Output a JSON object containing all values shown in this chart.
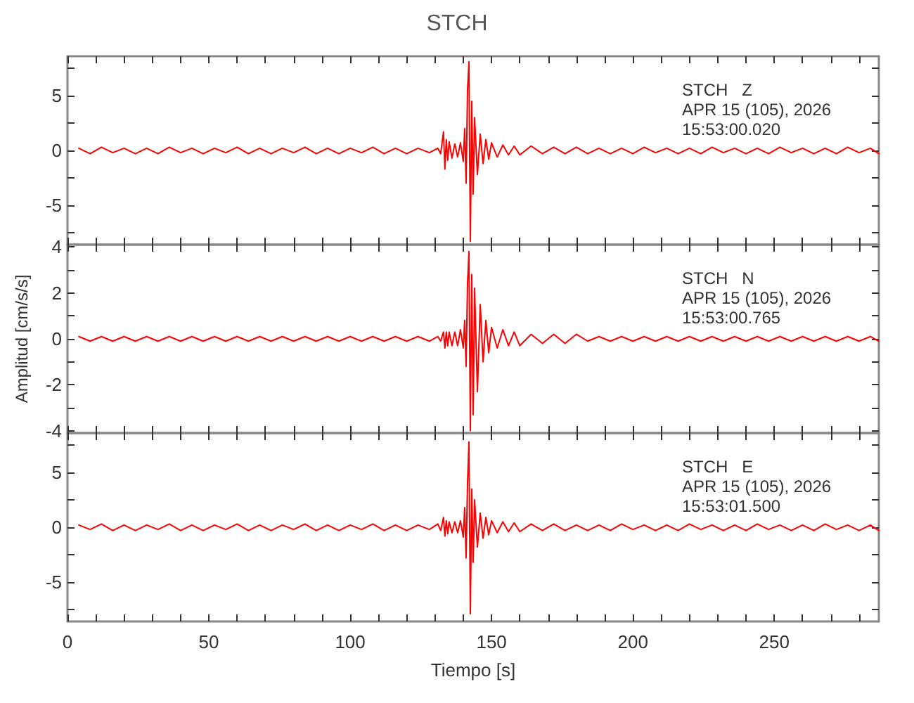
{
  "chart_data": [
    {
      "type": "line",
      "title": "STCH",
      "annotations": [
        "STCH   Z",
        "APR 15 (105), 2026",
        "15:53:00.020"
      ],
      "x": [
        4,
        8,
        12,
        16,
        20,
        24,
        28,
        32,
        36,
        40,
        44,
        48,
        52,
        56,
        60,
        64,
        68,
        72,
        76,
        80,
        84,
        88,
        92,
        96,
        100,
        104,
        108,
        112,
        116,
        120,
        124,
        128,
        131,
        132,
        133,
        133.5,
        134,
        134.5,
        135,
        136,
        137,
        138,
        139,
        140,
        140.5,
        141,
        141.5,
        142,
        142.5,
        143,
        143.5,
        144,
        145,
        146,
        147,
        148,
        149,
        150,
        152,
        154,
        156,
        158,
        160,
        164,
        168,
        172,
        176,
        180,
        184,
        188,
        192,
        196,
        200,
        204,
        208,
        212,
        216,
        220,
        224,
        228,
        232,
        236,
        240,
        244,
        248,
        252,
        256,
        260,
        264,
        268,
        272,
        276,
        280,
        284,
        287
      ],
      "series": [
        {
          "color": "#ff0000",
          "values": [
            0.2,
            -0.3,
            0.3,
            -0.2,
            0.2,
            -0.3,
            0.2,
            -0.3,
            0.3,
            -0.2,
            0.2,
            -0.3,
            0.2,
            -0.2,
            0.3,
            -0.3,
            0.2,
            -0.3,
            0.2,
            -0.2,
            0.3,
            -0.3,
            0.2,
            -0.3,
            0.2,
            -0.2,
            0.3,
            -0.3,
            0.2,
            -0.3,
            0.2,
            -0.2,
            0.2,
            -0.3,
            1.7,
            -1.7,
            1.0,
            -0.9,
            0.8,
            -0.7,
            0.6,
            -0.6,
            0.7,
            -1.0,
            2.0,
            -3.0,
            5.5,
            8.1,
            -8.3,
            4.5,
            -4.0,
            3.0,
            -2.2,
            1.5,
            -1.2,
            1.0,
            -0.8,
            0.7,
            -0.6,
            0.5,
            -0.4,
            0.4,
            -0.4,
            0.4,
            -0.3,
            0.3,
            -0.3,
            0.3,
            -0.3,
            0.2,
            -0.3,
            0.2,
            -0.3,
            0.3,
            -0.2,
            0.2,
            -0.3,
            0.2,
            -0.3,
            0.3,
            -0.2,
            0.2,
            -0.3,
            0.2,
            -0.3,
            0.3,
            -0.2,
            0.2,
            -0.3,
            0.2,
            -0.3,
            0.3,
            -0.2,
            0.2,
            -0.3
          ]
        }
      ],
      "xlim": [
        0,
        287
      ],
      "xticks": [
        0,
        {
          "value": 10,
          "label": null
        },
        {
          "value": 20,
          "label": null
        },
        {
          "value": 30,
          "label": null
        },
        {
          "value": 40,
          "label": null
        },
        50,
        {
          "value": 60,
          "label": null
        },
        {
          "value": 70,
          "label": null
        },
        {
          "value": 80,
          "label": null
        },
        {
          "value": 90,
          "label": null
        },
        100,
        {
          "value": 110,
          "label": null
        },
        {
          "value": 120,
          "label": null
        },
        {
          "value": 130,
          "label": null
        },
        {
          "value": 140,
          "label": null
        },
        150,
        {
          "value": 160,
          "label": null
        },
        {
          "value": 170,
          "label": null
        },
        {
          "value": 180,
          "label": null
        },
        {
          "value": 190,
          "label": null
        },
        200,
        {
          "value": 210,
          "label": null
        },
        {
          "value": 220,
          "label": null
        },
        {
          "value": 230,
          "label": null
        },
        {
          "value": 240,
          "label": null
        },
        250,
        {
          "value": 260,
          "label": null
        },
        {
          "value": 270,
          "label": null
        },
        {
          "value": 280,
          "label": null
        }
      ],
      "ylim": [
        -8.6,
        8.6
      ],
      "yticks": [
        {
          "value": -7.5,
          "label": null
        },
        -5,
        {
          "value": -2.5,
          "label": null
        },
        0,
        {
          "value": 2.5,
          "label": null
        },
        5,
        {
          "value": 7.5,
          "label": null
        }
      ],
      "tick_labels": "y",
      "grid": false,
      "marker": "none",
      "line_style": "solid"
    },
    {
      "type": "line",
      "ylabel": "Amplitud [cm/s/s]",
      "annotations": [
        "STCH   N",
        "APR 15 (105), 2026",
        "15:53:00.765"
      ],
      "x": [
        4,
        8,
        12,
        16,
        20,
        24,
        28,
        32,
        36,
        40,
        44,
        48,
        52,
        56,
        60,
        64,
        68,
        72,
        76,
        80,
        84,
        88,
        92,
        96,
        100,
        104,
        108,
        112,
        116,
        120,
        124,
        128,
        131,
        132,
        133,
        133.5,
        134,
        134.5,
        135,
        136,
        137,
        138,
        139,
        140,
        140.5,
        141,
        141.5,
        142,
        142.5,
        143,
        143.5,
        144,
        145,
        146,
        147,
        148,
        149,
        150,
        152,
        154,
        156,
        158,
        160,
        164,
        168,
        172,
        176,
        180,
        184,
        188,
        192,
        196,
        200,
        204,
        208,
        212,
        216,
        220,
        224,
        228,
        232,
        236,
        240,
        244,
        248,
        252,
        256,
        260,
        264,
        268,
        272,
        276,
        280,
        284,
        287
      ],
      "series": [
        {
          "color": "#ff0000",
          "values": [
            0.1,
            -0.1,
            0.1,
            -0.1,
            0.1,
            -0.1,
            0.1,
            -0.1,
            0.1,
            -0.1,
            0.1,
            -0.1,
            0.1,
            -0.1,
            0.1,
            -0.1,
            0.1,
            -0.1,
            0.1,
            -0.1,
            0.1,
            -0.1,
            0.1,
            -0.1,
            0.1,
            -0.1,
            0.1,
            -0.1,
            0.1,
            -0.1,
            0.1,
            -0.1,
            0.1,
            -0.1,
            0.3,
            -0.4,
            0.3,
            -0.3,
            0.3,
            -0.3,
            0.3,
            -0.3,
            0.4,
            -0.4,
            0.8,
            -1.2,
            2.4,
            3.8,
            -4.0,
            2.8,
            -3.3,
            2.2,
            -2.3,
            1.5,
            -1.0,
            0.8,
            -0.6,
            0.5,
            -0.4,
            0.4,
            -0.3,
            0.3,
            -0.3,
            0.2,
            -0.2,
            0.2,
            -0.2,
            0.2,
            -0.1,
            0.1,
            -0.1,
            0.1,
            -0.1,
            0.1,
            -0.1,
            0.1,
            -0.1,
            0.1,
            -0.1,
            0.1,
            -0.1,
            0.1,
            -0.1,
            0.1,
            -0.1,
            0.1,
            -0.1,
            0.1,
            -0.1,
            0.1,
            -0.1,
            0.1,
            -0.1,
            0.1,
            -0.1
          ]
        }
      ],
      "xlim": [
        0,
        287
      ],
      "xticks": [
        0,
        {
          "value": 10,
          "label": null
        },
        {
          "value": 20,
          "label": null
        },
        {
          "value": 30,
          "label": null
        },
        {
          "value": 40,
          "label": null
        },
        50,
        {
          "value": 60,
          "label": null
        },
        {
          "value": 70,
          "label": null
        },
        {
          "value": 80,
          "label": null
        },
        {
          "value": 90,
          "label": null
        },
        100,
        {
          "value": 110,
          "label": null
        },
        {
          "value": 120,
          "label": null
        },
        {
          "value": 130,
          "label": null
        },
        {
          "value": 140,
          "label": null
        },
        150,
        {
          "value": 160,
          "label": null
        },
        {
          "value": 170,
          "label": null
        },
        {
          "value": 180,
          "label": null
        },
        {
          "value": 190,
          "label": null
        },
        200,
        {
          "value": 210,
          "label": null
        },
        {
          "value": 220,
          "label": null
        },
        {
          "value": 230,
          "label": null
        },
        {
          "value": 240,
          "label": null
        },
        250,
        {
          "value": 260,
          "label": null
        },
        {
          "value": 270,
          "label": null
        },
        {
          "value": 280,
          "label": null
        }
      ],
      "ylim": [
        -4.1,
        4.1
      ],
      "yticks": [
        -4,
        {
          "value": -3,
          "label": null
        },
        -2,
        {
          "value": -1,
          "label": null
        },
        0,
        {
          "value": 1,
          "label": null
        },
        2,
        {
          "value": 3,
          "label": null
        },
        4
      ],
      "tick_labels": "y",
      "grid": false,
      "marker": "none",
      "line_style": "solid"
    },
    {
      "type": "line",
      "xlabel": "Tiempo [s]",
      "annotations": [
        "STCH   E",
        "APR 15 (105), 2026",
        "15:53:01.500"
      ],
      "x": [
        4,
        8,
        12,
        16,
        20,
        24,
        28,
        32,
        36,
        40,
        44,
        48,
        52,
        56,
        60,
        64,
        68,
        72,
        76,
        80,
        84,
        88,
        92,
        96,
        100,
        104,
        108,
        112,
        116,
        120,
        124,
        128,
        131,
        132,
        133,
        133.5,
        134,
        134.5,
        135,
        136,
        137,
        138,
        139,
        140,
        140.5,
        141,
        141.5,
        142,
        142.5,
        143,
        143.5,
        144,
        145,
        146,
        147,
        148,
        149,
        150,
        152,
        154,
        156,
        158,
        160,
        164,
        168,
        172,
        176,
        180,
        184,
        188,
        192,
        196,
        200,
        204,
        208,
        212,
        216,
        220,
        224,
        228,
        232,
        236,
        240,
        244,
        248,
        252,
        256,
        260,
        264,
        268,
        272,
        276,
        280,
        284,
        287
      ],
      "series": [
        {
          "color": "#ff0000",
          "values": [
            0.2,
            -0.2,
            0.3,
            -0.3,
            0.2,
            -0.3,
            0.2,
            -0.2,
            0.3,
            -0.3,
            0.2,
            -0.3,
            0.2,
            -0.2,
            0.3,
            -0.3,
            0.2,
            -0.3,
            0.2,
            -0.2,
            0.3,
            -0.3,
            0.2,
            -0.3,
            0.2,
            -0.2,
            0.3,
            -0.3,
            0.2,
            -0.3,
            0.2,
            -0.2,
            0.3,
            -0.3,
            0.9,
            -0.8,
            0.6,
            -0.6,
            0.5,
            -0.5,
            0.5,
            -0.5,
            0.6,
            -0.9,
            1.8,
            -2.8,
            4.0,
            7.8,
            -7.9,
            3.5,
            -3.2,
            2.5,
            -1.8,
            1.3,
            -1.0,
            0.9,
            -0.7,
            0.6,
            -0.5,
            0.5,
            -0.4,
            0.4,
            -0.4,
            0.3,
            -0.3,
            0.3,
            -0.3,
            0.2,
            -0.3,
            0.2,
            -0.3,
            0.3,
            -0.2,
            0.2,
            -0.3,
            0.2,
            -0.3,
            0.3,
            -0.2,
            0.2,
            -0.3,
            0.2,
            -0.3,
            0.3,
            -0.2,
            0.2,
            -0.3,
            0.2,
            -0.3,
            0.3,
            -0.2,
            0.2,
            -0.3,
            0.2,
            -0.3
          ]
        }
      ],
      "xlim": [
        0,
        287
      ],
      "xticks": [
        0,
        {
          "value": 10,
          "label": null
        },
        {
          "value": 20,
          "label": null
        },
        {
          "value": 30,
          "label": null
        },
        {
          "value": 40,
          "label": null
        },
        50,
        {
          "value": 60,
          "label": null
        },
        {
          "value": 70,
          "label": null
        },
        {
          "value": 80,
          "label": null
        },
        {
          "value": 90,
          "label": null
        },
        100,
        {
          "value": 110,
          "label": null
        },
        {
          "value": 120,
          "label": null
        },
        {
          "value": 130,
          "label": null
        },
        {
          "value": 140,
          "label": null
        },
        150,
        {
          "value": 160,
          "label": null
        },
        {
          "value": 170,
          "label": null
        },
        {
          "value": 180,
          "label": null
        },
        {
          "value": 190,
          "label": null
        },
        200,
        {
          "value": 210,
          "label": null
        },
        {
          "value": 220,
          "label": null
        },
        {
          "value": 230,
          "label": null
        },
        {
          "value": 240,
          "label": null
        },
        250,
        {
          "value": 260,
          "label": null
        },
        {
          "value": 270,
          "label": null
        },
        {
          "value": 280,
          "label": null
        }
      ],
      "ylim": [
        -8.6,
        8.6
      ],
      "yticks": [
        {
          "value": -7.5,
          "label": null
        },
        -5,
        {
          "value": -2.5,
          "label": null
        },
        0,
        {
          "value": 2.5,
          "label": null
        },
        5,
        {
          "value": 7.5,
          "label": null
        }
      ],
      "grid": false,
      "marker": "none",
      "line_style": "solid"
    }
  ]
}
